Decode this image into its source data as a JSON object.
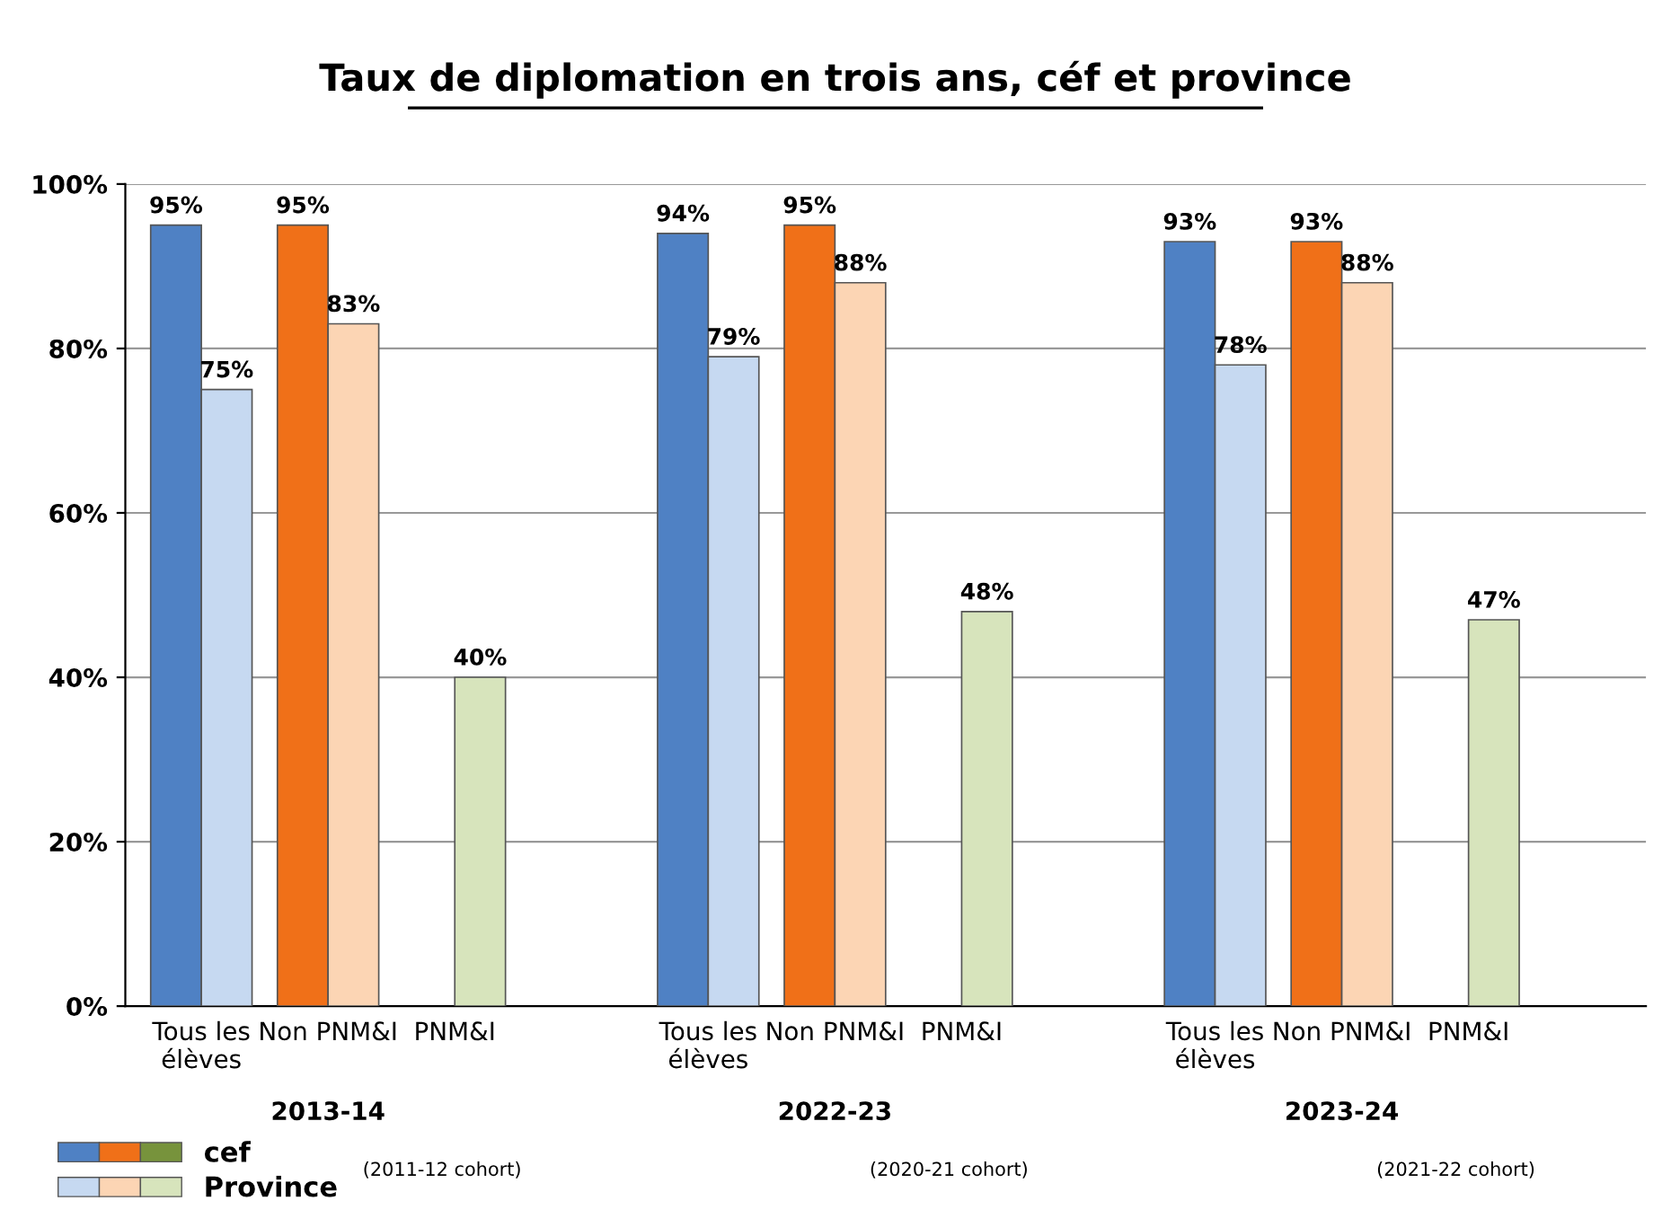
{
  "chart_data": {
    "type": "bar",
    "title": "Taux de diplomation en trois ans, céf et province",
    "categories": [
      "Tous les\nélèves",
      "Non PNM&I",
      "PNM&I",
      null,
      "Tous les\nélèves",
      "Non PNM&I",
      "PNM&I",
      null,
      "Tous les\nélèves",
      "Non PNM&I",
      "PNM&I",
      null
    ],
    "series": [
      {
        "name": "cef",
        "colors": [
          "#4f81c4",
          "#f07018",
          "#77933c",
          null,
          "#4f81c4",
          "#f07018",
          "#77933c",
          null,
          "#4f81c4",
          "#f07018",
          "#77933c",
          null
        ],
        "values": [
          95,
          95,
          null,
          null,
          94,
          95,
          null,
          null,
          93,
          93,
          null,
          null
        ],
        "value_labels": [
          "95%",
          "95%",
          null,
          null,
          "94%",
          "95%",
          null,
          null,
          "93%",
          "93%",
          null,
          null
        ]
      },
      {
        "name": "Province",
        "colors": [
          "#c6d9f1",
          "#fcd5b4",
          "#d7e4bc",
          null,
          "#c6d9f1",
          "#fcd5b4",
          "#d7e4bc",
          null,
          "#c6d9f1",
          "#fcd5b4",
          "#d7e4bc",
          null
        ],
        "values": [
          75,
          83,
          40,
          null,
          79,
          88,
          48,
          null,
          78,
          88,
          47,
          null
        ],
        "value_labels": [
          "75%",
          "83%",
          "40%",
          null,
          "79%",
          "88%",
          "48%",
          null,
          "78%",
          "88%",
          "47%",
          null
        ]
      }
    ],
    "annotations": [
      "2013-14",
      "(2011-12 cohort)",
      "2022-23",
      "(2020-21 cohort)",
      "2023-24",
      "(2021-22 cohort)"
    ],
    "ylim": [
      0,
      100
    ],
    "yticks": [
      {
        "value": 0,
        "label": "0%"
      },
      {
        "value": 20,
        "label": "20%"
      },
      {
        "value": 40,
        "label": "40%"
      },
      {
        "value": 60,
        "label": "60%"
      },
      {
        "value": 80,
        "label": "80%"
      },
      {
        "value": 100,
        "label": "100%"
      }
    ],
    "grid": "y",
    "legend": "bottom left"
  }
}
